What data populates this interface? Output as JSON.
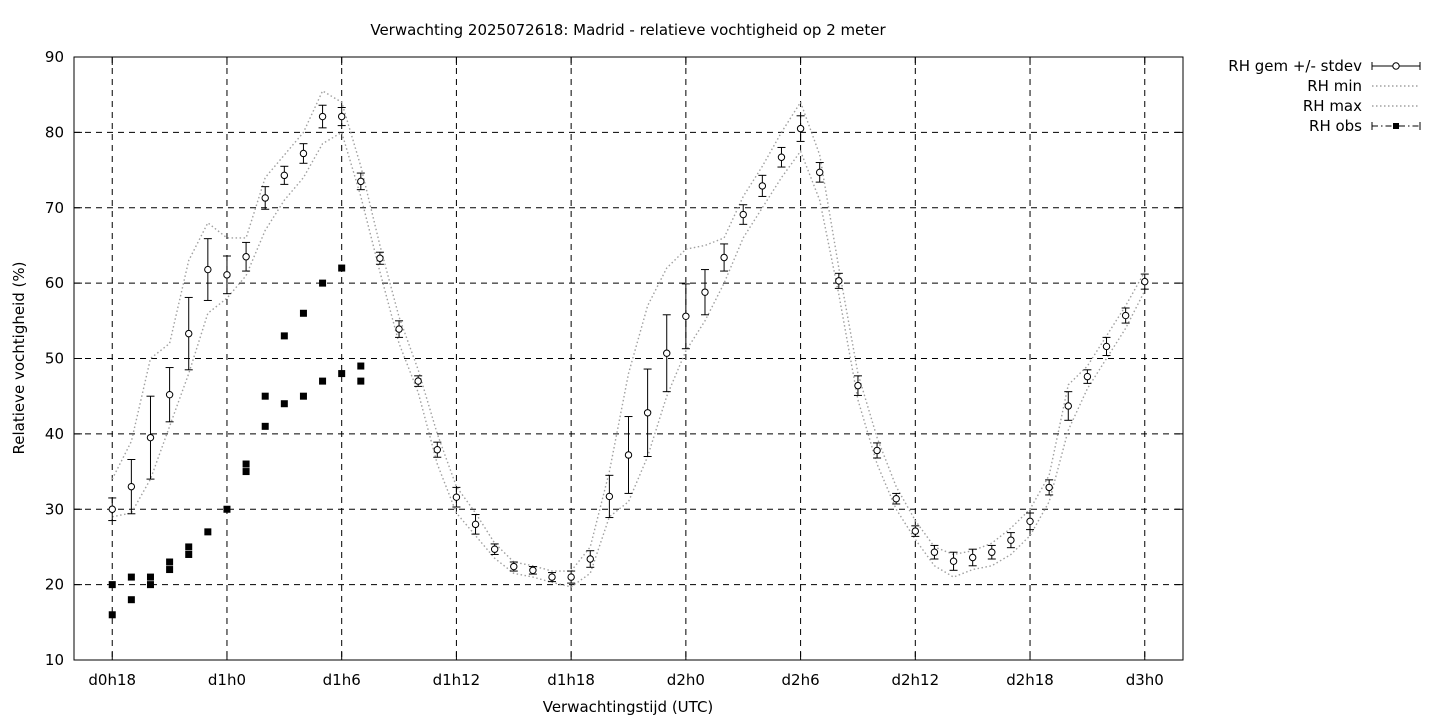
{
  "chart_data": {
    "type": "scatter",
    "title": "Verwachting 2025072618: Madrid - relatieve vochtigheid op 2 meter",
    "xlabel": "Verwachtingstijd (UTC)",
    "ylabel": "Relatieve vochtigheid (%)",
    "xlim": [
      -2,
      56
    ],
    "ylim": [
      10,
      90
    ],
    "grid": true,
    "legend_position": "outside-top-right",
    "x_ticks": [
      {
        "x": 0,
        "label": "d0h18"
      },
      {
        "x": 6,
        "label": "d1h0"
      },
      {
        "x": 12,
        "label": "d1h6"
      },
      {
        "x": 18,
        "label": "d1h12"
      },
      {
        "x": 24,
        "label": "d1h18"
      },
      {
        "x": 30,
        "label": "d2h0"
      },
      {
        "x": 36,
        "label": "d2h6"
      },
      {
        "x": 42,
        "label": "d2h12"
      },
      {
        "x": 48,
        "label": "d2h18"
      },
      {
        "x": 54,
        "label": "d3h0"
      }
    ],
    "y_ticks": [
      10,
      20,
      30,
      40,
      50,
      60,
      70,
      80,
      90
    ],
    "series": [
      {
        "name": "RH gem +/- stdev",
        "style": "errorbars-open-circles",
        "color": "#000000",
        "x": [
          0,
          1,
          2,
          3,
          4,
          5,
          6,
          7,
          8,
          9,
          10,
          11,
          12,
          13,
          14,
          15,
          16,
          17,
          18,
          19,
          20,
          21,
          22,
          23,
          24,
          25,
          26,
          27,
          28,
          29,
          30,
          31,
          32,
          33,
          34,
          35,
          36,
          37,
          38,
          39,
          40,
          41,
          42,
          43,
          44,
          45,
          46,
          47,
          48,
          49,
          50,
          51,
          52,
          53,
          54
        ],
        "y": [
          30,
          33,
          39.5,
          45.2,
          53.3,
          61.8,
          61.1,
          63.5,
          71.3,
          74.3,
          77.2,
          82.1,
          82.1,
          73.5,
          63.3,
          53.9,
          47,
          37.9,
          31.6,
          28,
          24.7,
          22.4,
          21.9,
          21,
          21,
          23.4,
          31.7,
          37.2,
          42.8,
          50.7,
          55.6,
          58.8,
          63.4,
          69.1,
          72.9,
          76.7,
          80.5,
          74.7,
          60.3,
          46.4,
          37.8,
          31.4,
          27.1,
          24.3,
          23.1,
          23.6,
          24.3,
          25.9,
          28.4,
          32.9,
          43.7,
          47.6,
          51.6,
          55.7,
          60.2
        ],
        "stdev": [
          1.5,
          3.6,
          5.5,
          3.6,
          4.8,
          4.1,
          2.5,
          1.9,
          1.5,
          1.2,
          1.3,
          1.5,
          1.2,
          1.1,
          0.8,
          1.1,
          0.7,
          1.0,
          1.3,
          1.3,
          0.7,
          0.6,
          0.5,
          0.6,
          0.8,
          1.1,
          2.8,
          5.1,
          5.8,
          5.1,
          4.3,
          3.0,
          1.8,
          1.3,
          1.4,
          1.3,
          1.7,
          1.3,
          1.0,
          1.3,
          1.0,
          0.7,
          0.7,
          0.9,
          1.2,
          1.1,
          0.9,
          1.0,
          1.1,
          1.0,
          1.9,
          0.9,
          1.2,
          1.0,
          1.0
        ]
      },
      {
        "name": "RH min",
        "style": "dotted-line",
        "color": "#a0a0a0",
        "x": [
          0,
          1,
          2,
          3,
          4,
          5,
          6,
          7,
          8,
          9,
          10,
          11,
          12,
          13,
          14,
          15,
          16,
          17,
          18,
          19,
          20,
          21,
          22,
          23,
          24,
          25,
          26,
          27,
          28,
          29,
          30,
          31,
          32,
          33,
          34,
          35,
          36,
          37,
          38,
          39,
          40,
          41,
          42,
          43,
          44,
          45,
          46,
          47,
          48,
          49,
          50,
          51,
          52,
          53,
          54
        ],
        "y": [
          29,
          29.5,
          34,
          41,
          48,
          56,
          58,
          61,
          67,
          71,
          74,
          78.5,
          80,
          71.5,
          61.5,
          52,
          45.5,
          36,
          29.5,
          26.5,
          23.5,
          21.5,
          21,
          20.3,
          19.7,
          21.5,
          29,
          31,
          37,
          45,
          51,
          55,
          60,
          66,
          70,
          74,
          77.5,
          71,
          58.5,
          44.5,
          36,
          30,
          26,
          22.5,
          21,
          22,
          22.5,
          24,
          26.5,
          31,
          40.5,
          46,
          50,
          54,
          59
        ]
      },
      {
        "name": "RH max",
        "style": "dotted-line",
        "color": "#a0a0a0",
        "x": [
          0,
          1,
          2,
          3,
          4,
          5,
          6,
          7,
          8,
          9,
          10,
          11,
          12,
          13,
          14,
          15,
          16,
          17,
          18,
          19,
          20,
          21,
          22,
          23,
          24,
          25,
          26,
          27,
          28,
          29,
          30,
          31,
          32,
          33,
          34,
          35,
          36,
          37,
          38,
          39,
          40,
          41,
          42,
          43,
          44,
          45,
          46,
          47,
          48,
          49,
          50,
          51,
          52,
          53,
          54
        ],
        "y": [
          34,
          39,
          50,
          52,
          63,
          68,
          66,
          66,
          74,
          77,
          80,
          85.5,
          84,
          75.5,
          65,
          55.5,
          48.5,
          40,
          33,
          29.5,
          25.5,
          23,
          22.5,
          21.8,
          21.8,
          25,
          35,
          48,
          57,
          62,
          64.5,
          65,
          66,
          71.5,
          75.5,
          80,
          84,
          77,
          62,
          48,
          39.5,
          33,
          28.5,
          25,
          24,
          24.5,
          25.5,
          27.5,
          30,
          34.5,
          46.5,
          49,
          53,
          57,
          61.5
        ]
      },
      {
        "name": "RH obs",
        "style": "filled-squares",
        "color": "#000000",
        "x": [
          0,
          0,
          1,
          1,
          2,
          2,
          3,
          3,
          4,
          4,
          5,
          6,
          7,
          7,
          8,
          8,
          9,
          9,
          10,
          10,
          11,
          11,
          12,
          12,
          13,
          13
        ],
        "y": [
          20,
          16,
          21,
          18,
          21,
          20,
          23,
          22,
          25,
          24,
          27,
          30,
          36,
          35,
          45,
          41,
          53,
          44,
          56,
          45,
          60,
          47,
          62,
          48,
          49,
          47
        ]
      }
    ]
  }
}
